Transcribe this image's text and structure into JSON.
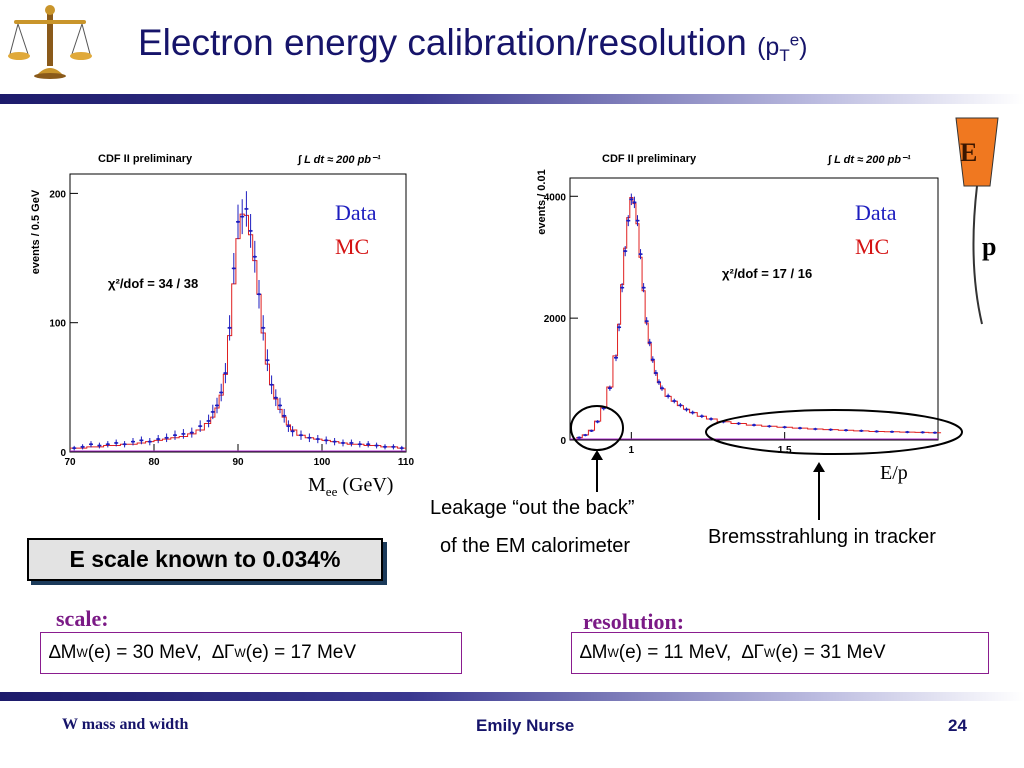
{
  "slide": {
    "title_main": "Electron energy calibration/resolution",
    "title_paren_open": "(p",
    "title_sub": "T",
    "title_sup": "e",
    "title_paren_close": ")",
    "footer_left": "W mass and width",
    "footer_center": "Emily Nurse",
    "footer_right": "24",
    "escale_box": "E scale known to 0.034%",
    "scale_label": "scale:",
    "resolution_label": "resolution:",
    "scale_box": {
      "delta1": "∆M",
      "sub1": "W",
      "text1": " (e) = 30 MeV,",
      "delta2": "∆Γ",
      "sub2": "W",
      "text2": " (e) = 17 MeV"
    },
    "resolution_box": {
      "delta1": "∆M",
      "sub1": "W",
      "text1": " (e) = 11 MeV,",
      "delta2": "∆Γ",
      "sub2": "W",
      "text2": " (e) = 31 MeV"
    },
    "annotation_leakage_1": "Leakage “out the back”",
    "annotation_leakage_2": "of the EM calorimeter",
    "annotation_brems": "Bremsstrahlung in tracker",
    "diagram_E": "E",
    "diagram_p": "p",
    "colors": {
      "title": "#16146a",
      "data": "#1d1dbf",
      "mc": "#d41212",
      "accent": "#7b1a86",
      "orange": "#f07820"
    },
    "icon": "balance-scale-icon"
  },
  "chart_data": [
    {
      "type": "scatter",
      "header_left": "CDF II preliminary",
      "header_right": "∫ L dt ≈ 200 pb⁻¹",
      "ylabel": "events / 0.5 GeV",
      "xlabel_main": "M",
      "xlabel_sub": "ee",
      "xlabel_rest": " (GeV)",
      "legend": [
        "Data",
        "MC"
      ],
      "chi2": "χ²/dof = 34 / 38",
      "xlim": [
        70,
        110
      ],
      "ylim": [
        0,
        215
      ],
      "xticks": [
        70,
        80,
        90,
        100,
        110
      ],
      "yticks": [
        0,
        100,
        200
      ],
      "x": [
        70.5,
        71.5,
        72.5,
        73.5,
        74.5,
        75.5,
        76.5,
        77.5,
        78.5,
        79.5,
        80.5,
        81.5,
        82.5,
        83.5,
        84.5,
        85.5,
        86.5,
        87,
        87.5,
        88,
        88.5,
        89,
        89.5,
        90,
        90.5,
        91,
        91.5,
        92,
        92.5,
        93,
        93.5,
        94,
        94.5,
        95,
        95.5,
        96,
        96.5,
        97.5,
        98.5,
        99.5,
        100.5,
        101.5,
        102.5,
        103.5,
        104.5,
        105.5,
        106.5,
        107.5,
        108.5,
        109.5
      ],
      "y": [
        3,
        4,
        6,
        5,
        6,
        7,
        6,
        8,
        9,
        8,
        10,
        11,
        13,
        14,
        15,
        20,
        24,
        31,
        36,
        46,
        61,
        96,
        142,
        178,
        182,
        188,
        171,
        151,
        122,
        96,
        71,
        52,
        42,
        36,
        28,
        20,
        16,
        13,
        11,
        10,
        9,
        8,
        7,
        7,
        6,
        6,
        5,
        4,
        4,
        3
      ],
      "mc_y": [
        3,
        3,
        4,
        4,
        5,
        5,
        6,
        6,
        7,
        8,
        9,
        10,
        11,
        12,
        14,
        17,
        22,
        27,
        34,
        44,
        60,
        90,
        130,
        165,
        184,
        183,
        168,
        148,
        122,
        92,
        68,
        52,
        41,
        33,
        27,
        21,
        17,
        13,
        11,
        10,
        9,
        8,
        7,
        6,
        6,
        5,
        5,
        4,
        4,
        3
      ]
    },
    {
      "type": "scatter",
      "header_left": "CDF II preliminary",
      "header_right": "∫ L dt ≈ 200 pb⁻¹",
      "ylabel": "events / 0.01",
      "xlabel": "E/p",
      "legend": [
        "Data",
        "MC"
      ],
      "chi2": "χ²/dof = 17 / 16",
      "xlim": [
        0.8,
        2.0
      ],
      "ylim": [
        0,
        4300
      ],
      "xticks_labeled": [
        1,
        1.5
      ],
      "yticks": [
        0,
        2000,
        4000
      ],
      "x": [
        0.83,
        0.85,
        0.87,
        0.89,
        0.91,
        0.93,
        0.95,
        0.96,
        0.97,
        0.98,
        0.99,
        1.0,
        1.01,
        1.02,
        1.03,
        1.04,
        1.05,
        1.06,
        1.07,
        1.08,
        1.09,
        1.1,
        1.12,
        1.14,
        1.16,
        1.18,
        1.2,
        1.23,
        1.26,
        1.3,
        1.35,
        1.4,
        1.45,
        1.5,
        1.55,
        1.6,
        1.65,
        1.7,
        1.75,
        1.8,
        1.85,
        1.9,
        1.95,
        1.99
      ],
      "y": [
        40,
        80,
        150,
        300,
        520,
        850,
        1350,
        1850,
        2500,
        3100,
        3600,
        3950,
        3900,
        3600,
        3050,
        2500,
        1950,
        1600,
        1320,
        1100,
        950,
        850,
        720,
        640,
        570,
        500,
        450,
        390,
        345,
        300,
        270,
        245,
        225,
        210,
        195,
        180,
        170,
        160,
        150,
        140,
        135,
        130,
        125,
        120
      ],
      "mc_y": [
        40,
        85,
        160,
        310,
        530,
        870,
        1380,
        1900,
        2550,
        3150,
        3650,
        3980,
        3880,
        3550,
        3000,
        2450,
        1920,
        1580,
        1300,
        1090,
        940,
        840,
        715,
        635,
        565,
        505,
        450,
        390,
        345,
        300,
        270,
        245,
        225,
        210,
        195,
        180,
        170,
        160,
        150,
        140,
        135,
        130,
        125,
        120
      ]
    }
  ]
}
